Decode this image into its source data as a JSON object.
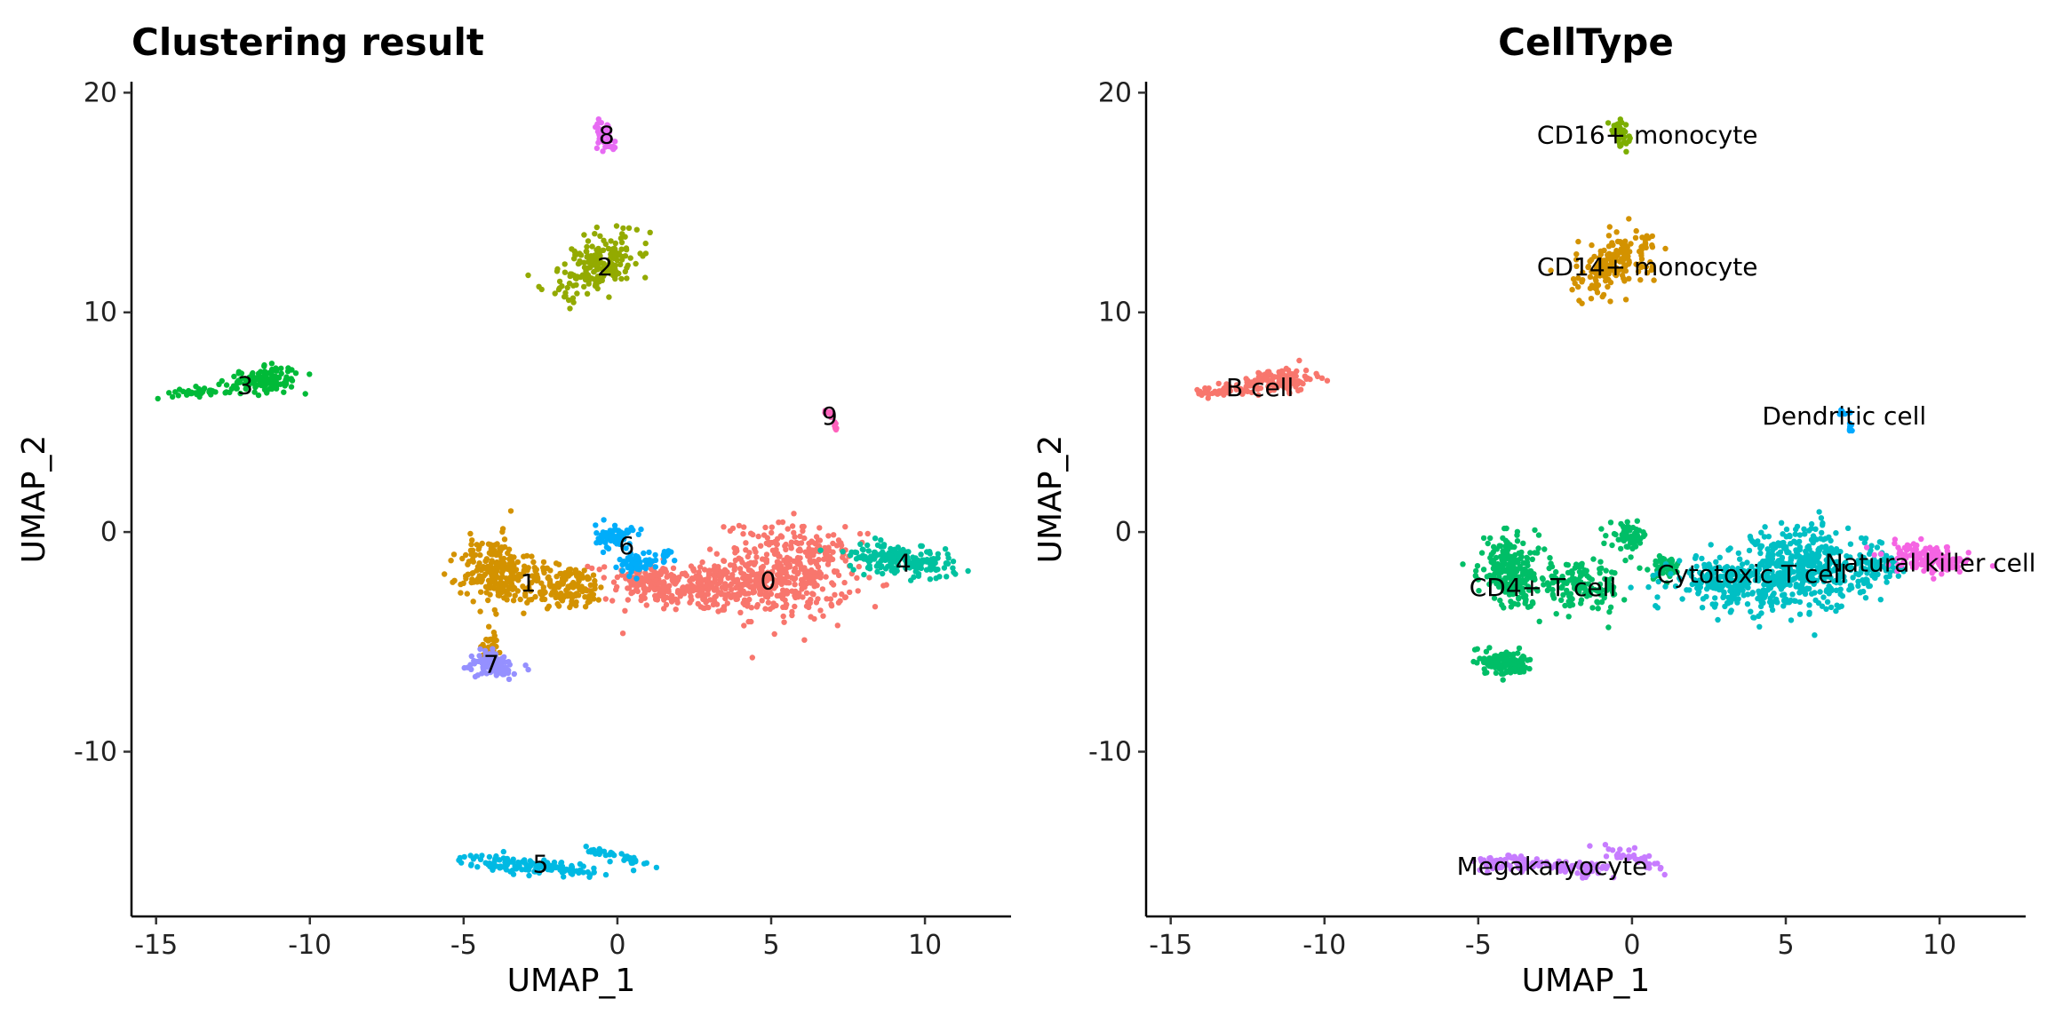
{
  "chart_data": [
    {
      "type": "scatter",
      "title": "Clustering result",
      "xlabel": "UMAP_1",
      "ylabel": "UMAP_2",
      "xlim": [
        -15.8,
        12.8
      ],
      "ylim": [
        -17.5,
        20.5
      ],
      "xticks": [
        -15,
        -10,
        -5,
        0,
        5,
        10
      ],
      "xtick_labels": [
        "-15",
        "-10",
        "-5",
        "0",
        "5",
        "10"
      ],
      "yticks": [
        -10,
        0,
        10,
        20
      ],
      "ytick_labels": [
        "-10",
        "0",
        "10",
        "20"
      ],
      "grid": false,
      "legend": "none",
      "series": [
        {
          "name": "0",
          "color": "#F8766D",
          "label_x": 4.9,
          "label_y": -2.2,
          "blobs": [
            [
              2.5,
              -2.5,
              2.5,
              1.0,
              -5,
              260
            ],
            [
              5.5,
              -1.8,
              2.0,
              1.9,
              -8,
              420
            ],
            [
              1.0,
              -2.2,
              1.2,
              0.8,
              0,
              80
            ]
          ]
        },
        {
          "name": "1",
          "color": "#D39200",
          "label_x": -2.9,
          "label_y": -2.3,
          "blobs": [
            [
              -3.9,
              -1.8,
              1.0,
              1.4,
              10,
              230
            ],
            [
              -1.7,
              -2.5,
              1.3,
              0.9,
              -8,
              150
            ],
            [
              -4.1,
              -5.0,
              0.3,
              0.8,
              0,
              25
            ]
          ]
        },
        {
          "name": "2",
          "color": "#93AA00",
          "label_x": -0.4,
          "label_y": 12.1,
          "blobs": [
            [
              -0.6,
              12.2,
              0.9,
              1.5,
              -35,
              200
            ]
          ]
        },
        {
          "name": "3",
          "color": "#00BA38",
          "label_x": -12.1,
          "label_y": 6.7,
          "blobs": [
            [
              -11.5,
              6.9,
              1.1,
              0.5,
              8,
              130
            ],
            [
              -13.5,
              6.4,
              0.9,
              0.2,
              5,
              40
            ]
          ]
        },
        {
          "name": "4",
          "color": "#00C19F",
          "label_x": 9.3,
          "label_y": -1.4,
          "blobs": [
            [
              9.2,
              -1.3,
              1.6,
              0.6,
              -12,
              190
            ]
          ]
        },
        {
          "name": "5",
          "color": "#00B9E3",
          "label_x": -2.5,
          "label_y": -15.1,
          "blobs": [
            [
              -3.8,
              -15.1,
              1.2,
              0.35,
              -4,
              70
            ],
            [
              -1.8,
              -15.3,
              1.2,
              0.3,
              -8,
              60
            ],
            [
              0.0,
              -14.8,
              1.0,
              0.25,
              -22,
              40
            ]
          ]
        },
        {
          "name": "6",
          "color": "#00ADFA",
          "label_x": 0.3,
          "label_y": -0.6,
          "blobs": [
            [
              -0.1,
              -0.2,
              0.55,
              0.5,
              0,
              60
            ],
            [
              0.6,
              -1.4,
              0.5,
              0.45,
              0,
              50
            ],
            [
              1.6,
              -1.1,
              0.35,
              0.3,
              0,
              15
            ]
          ]
        },
        {
          "name": "7",
          "color": "#9590FF",
          "label_x": -4.1,
          "label_y": -6.0,
          "blobs": [
            [
              -4.1,
              -6.0,
              0.8,
              0.5,
              -20,
              110
            ]
          ]
        },
        {
          "name": "8",
          "color": "#E76BF3",
          "label_x": -0.35,
          "label_y": 18.1,
          "blobs": [
            [
              -0.4,
              18.1,
              0.25,
              0.6,
              10,
              40
            ]
          ]
        },
        {
          "name": "9",
          "color": "#FF62BC",
          "label_x": 6.9,
          "label_y": 5.3,
          "blobs": [
            [
              6.85,
              5.4,
              0.15,
              0.12,
              0,
              8
            ],
            [
              7.1,
              4.8,
              0.04,
              0.25,
              0,
              6
            ]
          ]
        }
      ]
    },
    {
      "type": "scatter",
      "title": "CellType",
      "xlabel": "UMAP_1",
      "ylabel": "UMAP_2",
      "xlim": [
        -15.8,
        12.8
      ],
      "ylim": [
        -17.5,
        20.5
      ],
      "xticks": [
        -15,
        -10,
        -5,
        0,
        5,
        10
      ],
      "xtick_labels": [
        "-15",
        "-10",
        "-5",
        "0",
        "5",
        "10"
      ],
      "yticks": [
        -10,
        0,
        10,
        20
      ],
      "ytick_labels": [
        "-10",
        "0",
        "10",
        "20"
      ],
      "grid": false,
      "legend": "none",
      "series": [
        {
          "name": "B cell",
          "color": "#F8766D",
          "label_x": -12.1,
          "label_y": 6.6,
          "blobs": [
            [
              -11.5,
              6.9,
              1.1,
              0.5,
              8,
              130
            ],
            [
              -13.5,
              6.4,
              0.9,
              0.2,
              5,
              40
            ]
          ]
        },
        {
          "name": "CD14+ monocyte",
          "color": "#D39200",
          "label_x": 0.5,
          "label_y": 12.1,
          "blobs": [
            [
              -0.6,
              12.2,
              0.9,
              1.5,
              -35,
              200
            ]
          ]
        },
        {
          "name": "CD16+ monocyte",
          "color": "#7CAE00",
          "label_x": 0.5,
          "label_y": 18.1,
          "blobs": [
            [
              -0.4,
              18.1,
              0.25,
              0.6,
              10,
              40
            ]
          ]
        },
        {
          "name": "CD4+ T cell",
          "color": "#00BE67",
          "label_x": -2.9,
          "label_y": -2.5,
          "blobs": [
            [
              -3.9,
              -1.8,
              1.0,
              1.4,
              10,
              230
            ],
            [
              -1.7,
              -2.5,
              1.3,
              0.9,
              -8,
              150
            ],
            [
              -4.1,
              -6.0,
              0.8,
              0.5,
              -20,
              110
            ],
            [
              -0.1,
              -0.2,
              0.55,
              0.5,
              0,
              60
            ],
            [
              1.0,
              -1.6,
              0.6,
              0.5,
              0,
              50
            ]
          ]
        },
        {
          "name": "Cytotoxic T cell",
          "color": "#00BFC4",
          "label_x": 3.9,
          "label_y": -1.9,
          "blobs": [
            [
              3.3,
              -2.3,
              1.8,
              1.0,
              -5,
              260
            ],
            [
              5.8,
              -1.6,
              1.8,
              1.7,
              -10,
              400
            ],
            [
              8.0,
              -1.6,
              0.7,
              0.5,
              0,
              60
            ]
          ]
        },
        {
          "name": "Dendritic cell",
          "color": "#00A9FF",
          "label_x": 6.9,
          "label_y": 5.3,
          "blobs": [
            [
              6.85,
              5.4,
              0.15,
              0.12,
              0,
              8
            ],
            [
              7.1,
              4.8,
              0.04,
              0.25,
              0,
              6
            ]
          ]
        },
        {
          "name": "Natural killer cell",
          "color": "#F564E3",
          "label_x": 9.7,
          "label_y": -1.4,
          "blobs": [
            [
              9.6,
              -1.2,
              1.2,
              0.55,
              -12,
              150
            ]
          ]
        },
        {
          "name": "Megakaryocyte",
          "color": "#C77CFF",
          "label_x": -2.6,
          "label_y": -15.2,
          "blobs": [
            [
              -3.8,
              -15.1,
              1.2,
              0.35,
              -4,
              70
            ],
            [
              -1.8,
              -15.3,
              1.2,
              0.3,
              -8,
              60
            ],
            [
              0.0,
              -14.8,
              1.0,
              0.25,
              -22,
              40
            ]
          ]
        }
      ]
    }
  ]
}
